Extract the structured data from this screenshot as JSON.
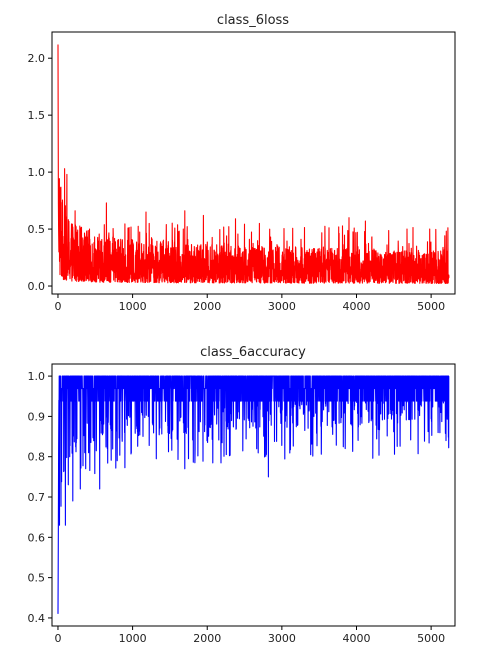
{
  "chart_data": [
    {
      "type": "line",
      "title": "class_6loss",
      "xlabel": "",
      "ylabel": "",
      "xlim": [
        -80,
        5320
      ],
      "ylim": [
        -0.07,
        2.23
      ],
      "xticks": [
        0,
        1000,
        2000,
        3000,
        4000,
        5000
      ],
      "xtick_labels": [
        "0",
        "1000",
        "2000",
        "3000",
        "4000",
        "5000"
      ],
      "yticks": [
        0.0,
        0.5,
        1.0,
        1.5,
        2.0
      ],
      "ytick_labels": [
        "0.0",
        "0.5",
        "1.0",
        "1.5",
        "2.0"
      ],
      "grid": false,
      "legend": "none",
      "series": [
        {
          "color": "#ff0000",
          "x_range": [
            0,
            5240
          ],
          "initial": [
            2.12,
            1.35,
            0.72,
            0.5,
            0.3
          ],
          "trend": [
            [
              0,
              0.75
            ],
            [
              60,
              0.38
            ],
            [
              150,
              0.3
            ],
            [
              300,
              0.26
            ],
            [
              600,
              0.22
            ],
            [
              1000,
              0.2
            ],
            [
              2000,
              0.18
            ],
            [
              3000,
              0.17
            ],
            [
              4000,
              0.16
            ],
            [
              5240,
              0.15
            ]
          ],
          "spikes": [
            [
              90,
              1.03
            ],
            [
              120,
              0.98
            ],
            [
              230,
              0.66
            ],
            [
              650,
              0.73
            ],
            [
              1180,
              0.65
            ],
            [
              1700,
              0.66
            ],
            [
              1950,
              0.62
            ],
            [
              2380,
              0.59
            ],
            [
              2700,
              0.55
            ],
            [
              3900,
              0.6
            ],
            [
              4120,
              0.57
            ]
          ],
          "y_min": 0.02
        }
      ]
    },
    {
      "type": "line",
      "title": "class_6accuracy",
      "xlabel": "",
      "ylabel": "",
      "xlim": [
        -80,
        5320
      ],
      "ylim": [
        0.38,
        1.03
      ],
      "xticks": [
        0,
        1000,
        2000,
        3000,
        4000,
        5000
      ],
      "xtick_labels": [
        "0",
        "1000",
        "2000",
        "3000",
        "4000",
        "5000"
      ],
      "yticks": [
        0.4,
        0.5,
        0.6,
        0.7,
        0.8,
        0.9,
        1.0
      ],
      "ytick_labels": [
        "0.4",
        "0.5",
        "0.6",
        "0.7",
        "0.8",
        "0.9",
        "1.0"
      ],
      "grid": false,
      "legend": "none",
      "series": [
        {
          "color": "#0000ff",
          "x_range": [
            0,
            5240
          ],
          "initial": [
            0.41,
            0.53,
            0.66,
            0.81,
            0.94
          ],
          "trend": [
            [
              0,
              0.6
            ],
            [
              60,
              0.82
            ],
            [
              150,
              0.88
            ],
            [
              300,
              0.9
            ],
            [
              600,
              0.92
            ],
            [
              1000,
              0.93
            ],
            [
              2000,
              0.94
            ],
            [
              3000,
              0.95
            ],
            [
              4000,
              0.955
            ],
            [
              5240,
              0.96
            ]
          ],
          "dips": [
            [
              100,
              0.63
            ],
            [
              200,
              0.69
            ],
            [
              300,
              0.72
            ],
            [
              560,
              0.72
            ],
            [
              1700,
              0.77
            ],
            [
              2820,
              0.75
            ],
            [
              3850,
              0.82
            ],
            [
              5200,
              0.84
            ]
          ],
          "y_max": 1.0
        }
      ]
    }
  ]
}
